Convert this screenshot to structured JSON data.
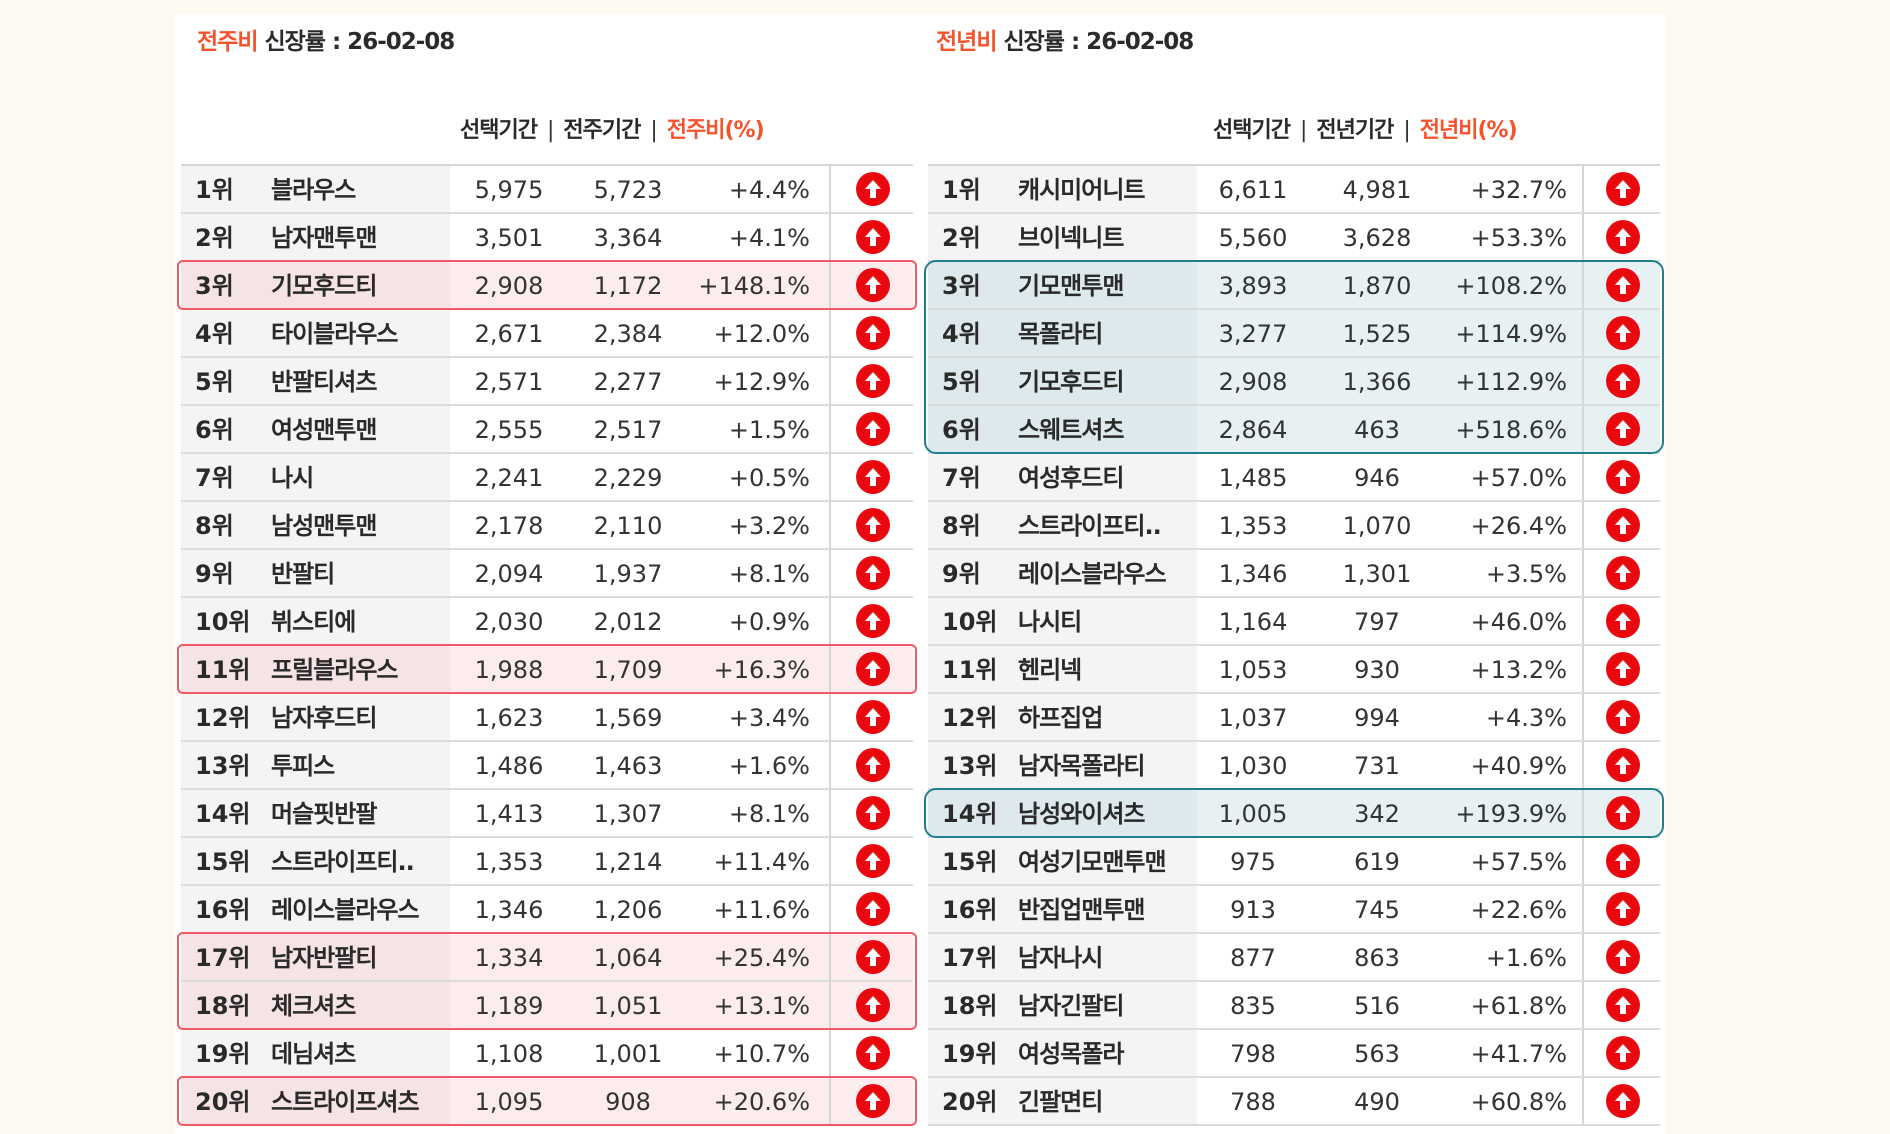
{
  "left": {
    "title_accent": "전주비",
    "title_rest": " 신장률  : 26-02-08",
    "headers": {
      "selected": "선택기간",
      "previous": "전주기간",
      "ratio": "전주비(%)",
      "sep": "|"
    },
    "highlight_color": "#ee5a66",
    "highlighted_groups": [
      [
        3
      ],
      [
        11
      ],
      [
        17,
        18
      ],
      [
        20
      ]
    ],
    "rows": [
      {
        "rank": "1위",
        "name": "블라우스",
        "sel": "5,975",
        "prev": "5,723",
        "pct": "+4.4%"
      },
      {
        "rank": "2위",
        "name": "남자맨투맨",
        "sel": "3,501",
        "prev": "3,364",
        "pct": "+4.1%"
      },
      {
        "rank": "3위",
        "name": "기모후드티",
        "sel": "2,908",
        "prev": "1,172",
        "pct": "+148.1%"
      },
      {
        "rank": "4위",
        "name": "타이블라우스",
        "sel": "2,671",
        "prev": "2,384",
        "pct": "+12.0%"
      },
      {
        "rank": "5위",
        "name": "반팔티셔츠",
        "sel": "2,571",
        "prev": "2,277",
        "pct": "+12.9%"
      },
      {
        "rank": "6위",
        "name": "여성맨투맨",
        "sel": "2,555",
        "prev": "2,517",
        "pct": "+1.5%"
      },
      {
        "rank": "7위",
        "name": "나시",
        "sel": "2,241",
        "prev": "2,229",
        "pct": "+0.5%"
      },
      {
        "rank": "8위",
        "name": "남성맨투맨",
        "sel": "2,178",
        "prev": "2,110",
        "pct": "+3.2%"
      },
      {
        "rank": "9위",
        "name": "반팔티",
        "sel": "2,094",
        "prev": "1,937",
        "pct": "+8.1%"
      },
      {
        "rank": "10위",
        "name": "뷔스티에",
        "sel": "2,030",
        "prev": "2,012",
        "pct": "+0.9%"
      },
      {
        "rank": "11위",
        "name": "프릴블라우스",
        "sel": "1,988",
        "prev": "1,709",
        "pct": "+16.3%"
      },
      {
        "rank": "12위",
        "name": "남자후드티",
        "sel": "1,623",
        "prev": "1,569",
        "pct": "+3.4%"
      },
      {
        "rank": "13위",
        "name": "투피스",
        "sel": "1,486",
        "prev": "1,463",
        "pct": "+1.6%"
      },
      {
        "rank": "14위",
        "name": "머슬핏반팔",
        "sel": "1,413",
        "prev": "1,307",
        "pct": "+8.1%"
      },
      {
        "rank": "15위",
        "name": "스트라이프티..",
        "sel": "1,353",
        "prev": "1,214",
        "pct": "+11.4%"
      },
      {
        "rank": "16위",
        "name": "레이스블라우스",
        "sel": "1,346",
        "prev": "1,206",
        "pct": "+11.6%"
      },
      {
        "rank": "17위",
        "name": "남자반팔티",
        "sel": "1,334",
        "prev": "1,064",
        "pct": "+25.4%"
      },
      {
        "rank": "18위",
        "name": "체크셔츠",
        "sel": "1,189",
        "prev": "1,051",
        "pct": "+13.1%"
      },
      {
        "rank": "19위",
        "name": "데님셔츠",
        "sel": "1,108",
        "prev": "1,001",
        "pct": "+10.7%"
      },
      {
        "rank": "20위",
        "name": "스트라이프셔츠",
        "sel": "1,095",
        "prev": "908",
        "pct": "+20.6%"
      }
    ]
  },
  "right": {
    "title_accent": "전년비",
    "title_rest": " 신장률 : 26-02-08",
    "headers": {
      "selected": "선택기간",
      "previous": "전년기간",
      "ratio": "전년비(%)",
      "sep": "|"
    },
    "highlight_color": "#1f7f8c",
    "highlighted_groups": [
      [
        3,
        4,
        5,
        6
      ],
      [
        14
      ]
    ],
    "rows": [
      {
        "rank": "1위",
        "name": "캐시미어니트",
        "sel": "6,611",
        "prev": "4,981",
        "pct": "+32.7%"
      },
      {
        "rank": "2위",
        "name": "브이넥니트",
        "sel": "5,560",
        "prev": "3,628",
        "pct": "+53.3%"
      },
      {
        "rank": "3위",
        "name": "기모맨투맨",
        "sel": "3,893",
        "prev": "1,870",
        "pct": "+108.2%"
      },
      {
        "rank": "4위",
        "name": "목폴라티",
        "sel": "3,277",
        "prev": "1,525",
        "pct": "+114.9%"
      },
      {
        "rank": "5위",
        "name": "기모후드티",
        "sel": "2,908",
        "prev": "1,366",
        "pct": "+112.9%"
      },
      {
        "rank": "6위",
        "name": "스웨트셔츠",
        "sel": "2,864",
        "prev": "463",
        "pct": "+518.6%"
      },
      {
        "rank": "7위",
        "name": "여성후드티",
        "sel": "1,485",
        "prev": "946",
        "pct": "+57.0%"
      },
      {
        "rank": "8위",
        "name": "스트라이프티..",
        "sel": "1,353",
        "prev": "1,070",
        "pct": "+26.4%"
      },
      {
        "rank": "9위",
        "name": "레이스블라우스",
        "sel": "1,346",
        "prev": "1,301",
        "pct": "+3.5%"
      },
      {
        "rank": "10위",
        "name": "나시티",
        "sel": "1,164",
        "prev": "797",
        "pct": "+46.0%"
      },
      {
        "rank": "11위",
        "name": "헨리넥",
        "sel": "1,053",
        "prev": "930",
        "pct": "+13.2%"
      },
      {
        "rank": "12위",
        "name": "하프집업",
        "sel": "1,037",
        "prev": "994",
        "pct": "+4.3%"
      },
      {
        "rank": "13위",
        "name": "남자목폴라티",
        "sel": "1,030",
        "prev": "731",
        "pct": "+40.9%"
      },
      {
        "rank": "14위",
        "name": "남성와이셔츠",
        "sel": "1,005",
        "prev": "342",
        "pct": "+193.9%"
      },
      {
        "rank": "15위",
        "name": "여성기모맨투맨",
        "sel": "975",
        "prev": "619",
        "pct": "+57.5%"
      },
      {
        "rank": "16위",
        "name": "반집업맨투맨",
        "sel": "913",
        "prev": "745",
        "pct": "+22.6%"
      },
      {
        "rank": "17위",
        "name": "남자나시",
        "sel": "877",
        "prev": "863",
        "pct": "+1.6%"
      },
      {
        "rank": "18위",
        "name": "남자긴팔티",
        "sel": "835",
        "prev": "516",
        "pct": "+61.8%"
      },
      {
        "rank": "19위",
        "name": "여성목폴라",
        "sel": "798",
        "prev": "563",
        "pct": "+41.7%"
      },
      {
        "rank": "20위",
        "name": "긴팔면티",
        "sel": "788",
        "prev": "490",
        "pct": "+60.8%"
      }
    ]
  },
  "colors": {
    "accent": "#f4532c",
    "up_icon": "#e8090f"
  },
  "row_icon": "arrow-up-circle-icon"
}
